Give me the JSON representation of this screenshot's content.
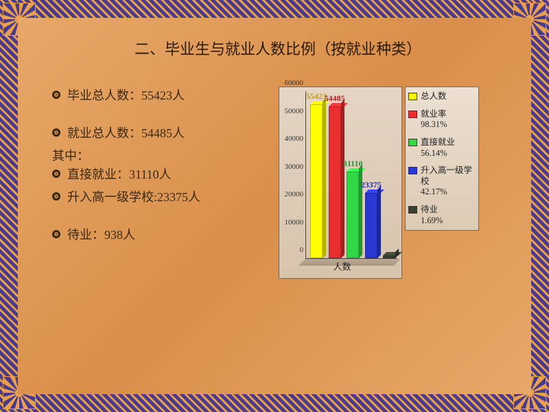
{
  "title": "二、毕业生与就业人数比例（按就业种类）",
  "bullets": {
    "b1": "毕业总人数：55423人",
    "b2": "就业总人数：54485人",
    "sub": "其中：",
    "b3": "直接就业：31110人",
    "b4": "升入高一级学校:23375人",
    "b5": "待业：938人"
  },
  "chart": {
    "type": "bar",
    "xaxis_label": "人数",
    "ymax": 60000,
    "ytick_step": 10000,
    "yticks": [
      "0",
      "10000",
      "20000",
      "30000",
      "40000",
      "50000",
      "60000"
    ],
    "background_color": "#e0d2c0",
    "axis_color": "#444444",
    "bars": [
      {
        "value": 55423,
        "label": "55423",
        "color": "#ffff00",
        "label_color": "#c0a020"
      },
      {
        "value": 54485,
        "label": "54485",
        "color": "#e83030",
        "label_color": "#b02020"
      },
      {
        "value": 31110,
        "label": "31110",
        "color": "#30d848",
        "label_color": "#209030"
      },
      {
        "value": 23375,
        "label": "23375",
        "color": "#2838d0",
        "label_color": "#2030a0"
      },
      {
        "value": 938,
        "label": "",
        "color": "#384030",
        "label_color": "#384030"
      }
    ]
  },
  "legend": [
    {
      "color": "#ffff00",
      "l1": "总人数",
      "l2": ""
    },
    {
      "color": "#e83030",
      "l1": "就业率",
      "l2": "98.31%"
    },
    {
      "color": "#30d848",
      "l1": "直接就业",
      "l2": "56.14%"
    },
    {
      "color": "#2838d0",
      "l1": "升入高一级学校",
      "l2": "42.17%"
    },
    {
      "color": "#384030",
      "l1": "待业",
      "l2": "1.69%"
    }
  ]
}
